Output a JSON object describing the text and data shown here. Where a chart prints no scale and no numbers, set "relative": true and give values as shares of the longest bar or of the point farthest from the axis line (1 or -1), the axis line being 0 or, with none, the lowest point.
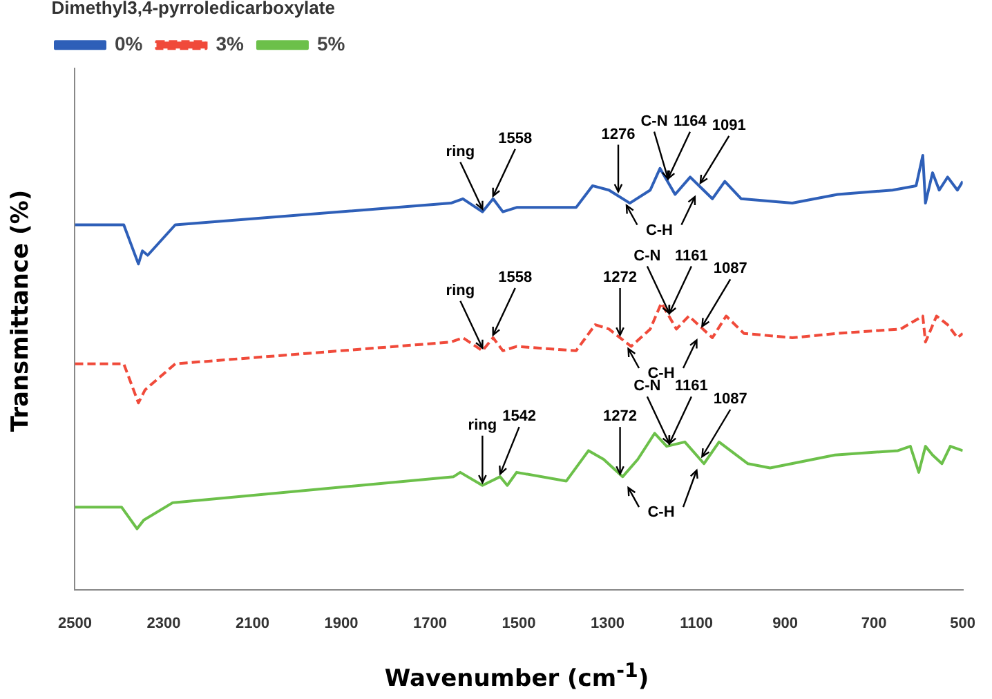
{
  "chart_data": {
    "type": "line",
    "relative": true,
    "xlabel": "Wavenumber (cm$^{-1}$)",
    "ylabel": "Transmittance (%)",
    "legend_title": "Dimethyl3,4-pyrroledicarboxylate",
    "legend": "top left",
    "tick_labels": "x",
    "xlim": [
      2500,
      500
    ],
    "xticks": [
      2500,
      2300,
      2100,
      1900,
      1700,
      1500,
      1300,
      1100,
      900,
      700,
      500
    ],
    "series": [
      {
        "name": "0%",
        "color": "#2e5fb8",
        "x": [
          2500,
          2390,
          2357,
          2348,
          2336,
          2274,
          1653,
          1626,
          1582,
          1558,
          1536,
          1505,
          1371,
          1334,
          1297,
          1250,
          1204,
          1182,
          1148,
          1114,
          1064,
          1036,
          999,
          884,
          782,
          658,
          605,
          590,
          584,
          568,
          553,
          534,
          512,
          500
        ],
        "values": [
          0.84,
          0.84,
          0.75,
          0.78,
          0.77,
          0.84,
          0.89,
          0.9,
          0.87,
          0.9,
          0.87,
          0.88,
          0.88,
          0.93,
          0.92,
          0.89,
          0.92,
          0.97,
          0.91,
          0.95,
          0.9,
          0.94,
          0.9,
          0.89,
          0.91,
          0.92,
          0.93,
          1.0,
          0.89,
          0.96,
          0.92,
          0.95,
          0.92,
          0.94
        ]
      },
      {
        "name": "3%",
        "color": "#f04a3a",
        "line_style": "dashed",
        "x": [
          2500,
          2390,
          2357,
          2342,
          2274,
          1653,
          1626,
          1582,
          1558,
          1536,
          1505,
          1371,
          1328,
          1297,
          1247,
          1204,
          1179,
          1145,
          1117,
          1064,
          1033,
          993,
          884,
          782,
          640,
          590,
          584,
          559,
          534,
          512,
          500
        ],
        "values": [
          0.52,
          0.52,
          0.43,
          0.46,
          0.52,
          0.57,
          0.58,
          0.55,
          0.58,
          0.55,
          0.56,
          0.55,
          0.61,
          0.6,
          0.56,
          0.6,
          0.66,
          0.6,
          0.63,
          0.58,
          0.63,
          0.59,
          0.58,
          0.59,
          0.6,
          0.63,
          0.57,
          0.63,
          0.61,
          0.58,
          0.59
        ]
      },
      {
        "name": "5%",
        "color": "#6cc04a",
        "x": [
          2500,
          2395,
          2360,
          2345,
          2280,
          1647,
          1632,
          1582,
          1542,
          1526,
          1505,
          1393,
          1343,
          1309,
          1266,
          1232,
          1194,
          1167,
          1126,
          1083,
          1049,
          984,
          934,
          788,
          646,
          618,
          599,
          584,
          568,
          547,
          528,
          500
        ],
        "values": [
          0.19,
          0.19,
          0.14,
          0.16,
          0.2,
          0.26,
          0.27,
          0.24,
          0.26,
          0.24,
          0.27,
          0.25,
          0.32,
          0.3,
          0.26,
          0.3,
          0.36,
          0.33,
          0.34,
          0.29,
          0.34,
          0.29,
          0.28,
          0.31,
          0.32,
          0.33,
          0.27,
          0.33,
          0.31,
          0.29,
          0.33,
          0.32
        ]
      }
    ],
    "annotations": [
      {
        "text": "ring",
        "x": 1582,
        "y": 0.87
      },
      {
        "text": "1558",
        "x": 1558,
        "y": 0.9
      },
      {
        "text": "1276",
        "x": 1276,
        "y": 0.91
      },
      {
        "text": "C-N",
        "x": 1164,
        "y": 0.94
      },
      {
        "text": "1164",
        "x": 1164,
        "y": 0.94
      },
      {
        "text": "1091",
        "x": 1091,
        "y": 0.93
      },
      "C-H",
      {
        "text": "ring",
        "x": 1582,
        "y": 0.55
      },
      {
        "text": "1558",
        "x": 1558,
        "y": 0.58
      },
      {
        "text": "1272",
        "x": 1272,
        "y": 0.58
      },
      {
        "text": "C-N",
        "x": 1161,
        "y": 0.63
      },
      {
        "text": "1161",
        "x": 1161,
        "y": 0.63
      },
      {
        "text": "1087",
        "x": 1087,
        "y": 0.6
      },
      "C-H",
      {
        "text": "ring",
        "x": 1582,
        "y": 0.24
      },
      {
        "text": "1542",
        "x": 1542,
        "y": 0.26
      },
      {
        "text": "1272",
        "x": 1272,
        "y": 0.26
      },
      {
        "text": "C-N",
        "x": 1161,
        "y": 0.33
      },
      {
        "text": "1161",
        "x": 1161,
        "y": 0.33
      },
      {
        "text": "1087",
        "x": 1087,
        "y": 0.3
      },
      "C-H"
    ]
  }
}
